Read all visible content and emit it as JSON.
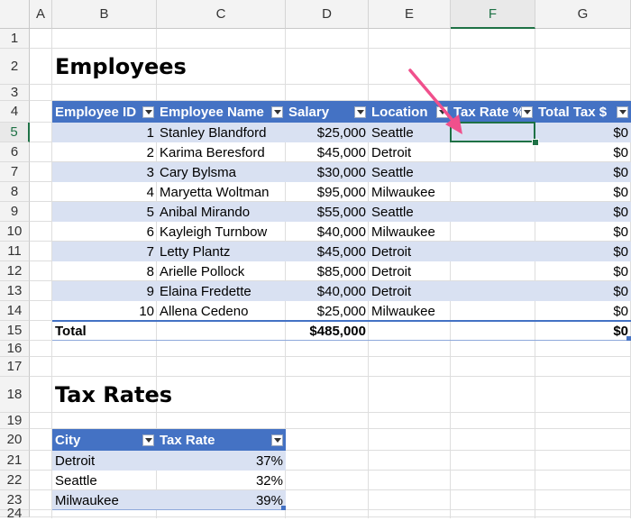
{
  "columns": [
    "A",
    "B",
    "C",
    "D",
    "E",
    "F",
    "G"
  ],
  "rows": [
    "1",
    "2",
    "3",
    "4",
    "5",
    "6",
    "7",
    "8",
    "9",
    "10",
    "11",
    "12",
    "13",
    "14",
    "15",
    "16",
    "17",
    "18",
    "19",
    "20",
    "21",
    "22",
    "23",
    "24"
  ],
  "selected_column": "F",
  "selected_row": "5",
  "employees": {
    "title": "Employees",
    "headers": [
      "Employee ID",
      "Employee Name",
      "Salary",
      "Location",
      "Tax Rate %",
      "Total Tax $"
    ],
    "rows": [
      {
        "id": "1",
        "name": "Stanley Blandford",
        "salary": "$25,000",
        "location": "Seattle",
        "tax_rate": "",
        "total_tax": "$0"
      },
      {
        "id": "2",
        "name": "Karima Beresford",
        "salary": "$45,000",
        "location": "Detroit",
        "tax_rate": "",
        "total_tax": "$0"
      },
      {
        "id": "3",
        "name": "Cary Bylsma",
        "salary": "$30,000",
        "location": "Seattle",
        "tax_rate": "",
        "total_tax": "$0"
      },
      {
        "id": "4",
        "name": "Maryetta Woltman",
        "salary": "$95,000",
        "location": "Milwaukee",
        "tax_rate": "",
        "total_tax": "$0"
      },
      {
        "id": "5",
        "name": "Anibal Mirando",
        "salary": "$55,000",
        "location": "Seattle",
        "tax_rate": "",
        "total_tax": "$0"
      },
      {
        "id": "6",
        "name": "Kayleigh Turnbow",
        "salary": "$40,000",
        "location": "Milwaukee",
        "tax_rate": "",
        "total_tax": "$0"
      },
      {
        "id": "7",
        "name": "Letty Plantz",
        "salary": "$45,000",
        "location": "Detroit",
        "tax_rate": "",
        "total_tax": "$0"
      },
      {
        "id": "8",
        "name": "Arielle Pollock",
        "salary": "$85,000",
        "location": "Detroit",
        "tax_rate": "",
        "total_tax": "$0"
      },
      {
        "id": "9",
        "name": "Elaina Fredette",
        "salary": "$40,000",
        "location": "Detroit",
        "tax_rate": "",
        "total_tax": "$0"
      },
      {
        "id": "10",
        "name": "Allena Cedeno",
        "salary": "$25,000",
        "location": "Milwaukee",
        "tax_rate": "",
        "total_tax": "$0"
      }
    ],
    "total": {
      "label": "Total",
      "salary": "$485,000",
      "total_tax": "$0"
    }
  },
  "tax_rates": {
    "title": "Tax Rates",
    "headers": [
      "City",
      "Tax Rate"
    ],
    "rows": [
      {
        "city": "Detroit",
        "rate": "37%"
      },
      {
        "city": "Seattle",
        "rate": "32%"
      },
      {
        "city": "Milwaukee",
        "rate": "39%"
      }
    ]
  },
  "annotation": {
    "type": "arrow-icon",
    "color": "#f0508c"
  },
  "colors": {
    "header_fill": "#4472c4",
    "band_fill": "#d9e1f2",
    "selection": "#1e7145"
  }
}
